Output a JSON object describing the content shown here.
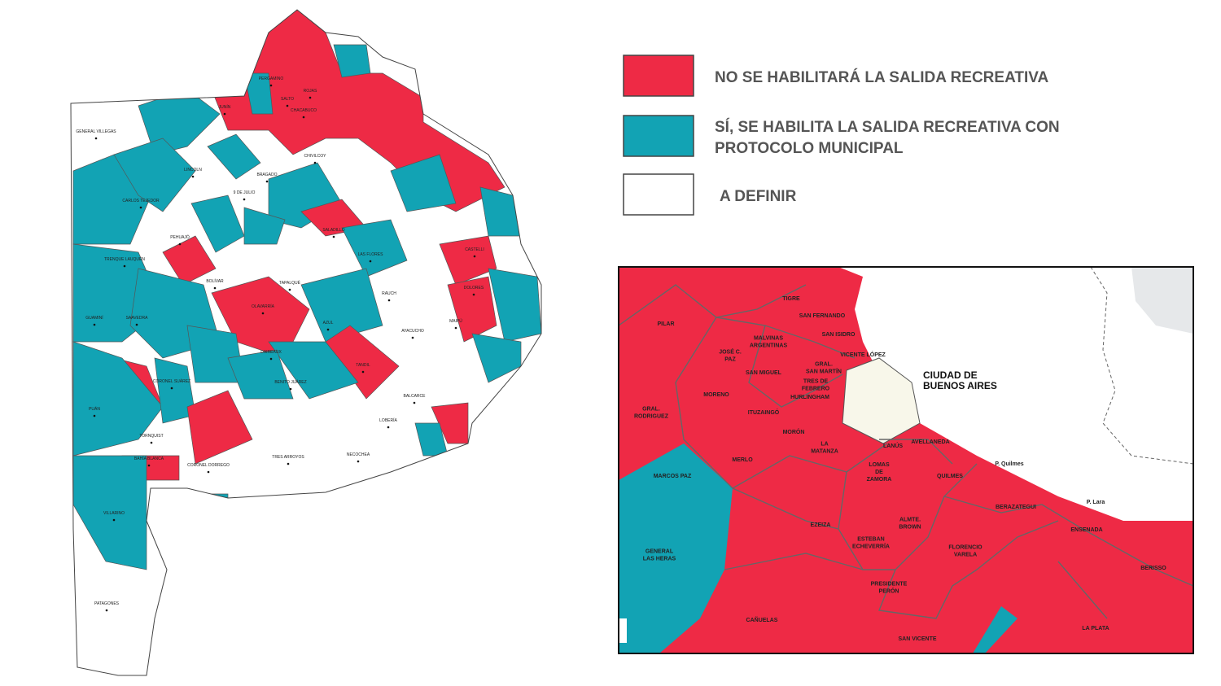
{
  "legend": [
    {
      "label": [
        "NO SE HABILITARÁ LA SALIDA RECREATIVA"
      ],
      "color": "#ee2a45"
    },
    {
      "label": [
        "SÍ, SE HABILITA LA SALIDA RECREATIVA CON",
        "PROTOCOLO MUNICIPAL"
      ],
      "color": "#12a3b4"
    },
    {
      "label": [
        "A DEFINIR"
      ],
      "color": "#ffffff"
    }
  ],
  "province_labels": [
    "PERGAMINO",
    "SALTO",
    "ROJAS",
    "JUNÍN",
    "LINCOLN",
    "BRAGADO",
    "9 DE JULIO",
    "PEHUAJÓ",
    "TRENQUE LAUQUEN",
    "CARLOS TEJEDOR",
    "BOLÍVAR",
    "OLAVARRÍA",
    "AZUL",
    "TANDIL",
    "TAPALQUÉ",
    "SALADILLO",
    "CASTELLI",
    "DOLORES",
    "MAIPÚ",
    "BALCARCE",
    "LOBERÍA",
    "NECOCHEA",
    "TRES ARROYOS",
    "CORONEL SUÁREZ",
    "PUÁN",
    "TORNQUIST",
    "BAHÍA BLANCA",
    "CORONEL DORREGO",
    "VILLARINO",
    "PATAGONES",
    "GENERAL VILLEGAS",
    "CHIVILCOY",
    "LAS FLORES",
    "RAUCH",
    "AYACUCHO",
    "SAAVEDRA",
    "GUAMINÍ",
    "DAIREAUX",
    "CHACABUCO",
    "BENITO JUÁREZ"
  ],
  "inset_labels": [
    {
      "lines": [
        "TIGRE"
      ]
    },
    {
      "lines": [
        "SAN FERNANDO"
      ]
    },
    {
      "lines": [
        "PILAR"
      ]
    },
    {
      "lines": [
        "MALVINAS",
        "ARGENTINAS"
      ]
    },
    {
      "lines": [
        "SAN ISIDRO"
      ]
    },
    {
      "lines": [
        "JOSÉ C.",
        "PAZ"
      ]
    },
    {
      "lines": [
        "VICENTE LÓPEZ"
      ]
    },
    {
      "lines": [
        "GRAL.",
        "SAN MARTÍN"
      ]
    },
    {
      "lines": [
        "SAN MIGUEL"
      ]
    },
    {
      "lines": [
        "TRES DE",
        "FEBRERO"
      ]
    },
    {
      "lines": [
        "MORENO"
      ]
    },
    {
      "lines": [
        "HURLINGHAM"
      ]
    },
    {
      "lines": [
        "GRAL.",
        "RODRIGUEZ"
      ]
    },
    {
      "lines": [
        "ITUZAINGÓ"
      ]
    },
    {
      "lines": [
        "MORÓN"
      ]
    },
    {
      "lines": [
        "AVELLANEDA"
      ]
    },
    {
      "lines": [
        "LANÚS"
      ]
    },
    {
      "lines": [
        "LA",
        "MATANZA"
      ]
    },
    {
      "lines": [
        "MERLO"
      ]
    },
    {
      "lines": [
        "P. Quilmes"
      ]
    },
    {
      "lines": [
        "QUILMES"
      ]
    },
    {
      "lines": [
        "LOMAS",
        "DE",
        "ZAMORA"
      ]
    },
    {
      "lines": [
        "MARCOS PAZ"
      ]
    },
    {
      "lines": [
        "BERAZATEGUI"
      ]
    },
    {
      "lines": [
        "P. Lara"
      ]
    },
    {
      "lines": [
        "EZEIZA"
      ]
    },
    {
      "lines": [
        "ALMTE.",
        "BROWN"
      ]
    },
    {
      "lines": [
        "ENSENADA"
      ]
    },
    {
      "lines": [
        "ESTEBAN",
        "ECHEVERRÍA"
      ]
    },
    {
      "lines": [
        "FLORENCIO",
        "VARELA"
      ]
    },
    {
      "lines": [
        "GENERAL",
        "LAS HERAS"
      ]
    },
    {
      "lines": [
        "BERISSO"
      ]
    },
    {
      "lines": [
        "PRESIDENTE",
        "PERÓN"
      ]
    },
    {
      "lines": [
        "CAÑUELAS"
      ]
    },
    {
      "lines": [
        "LA PLATA"
      ]
    },
    {
      "lines": [
        "SAN VICENTE"
      ]
    }
  ],
  "capital_label": [
    "CIUDAD DE",
    "BUENOS AIRES"
  ]
}
